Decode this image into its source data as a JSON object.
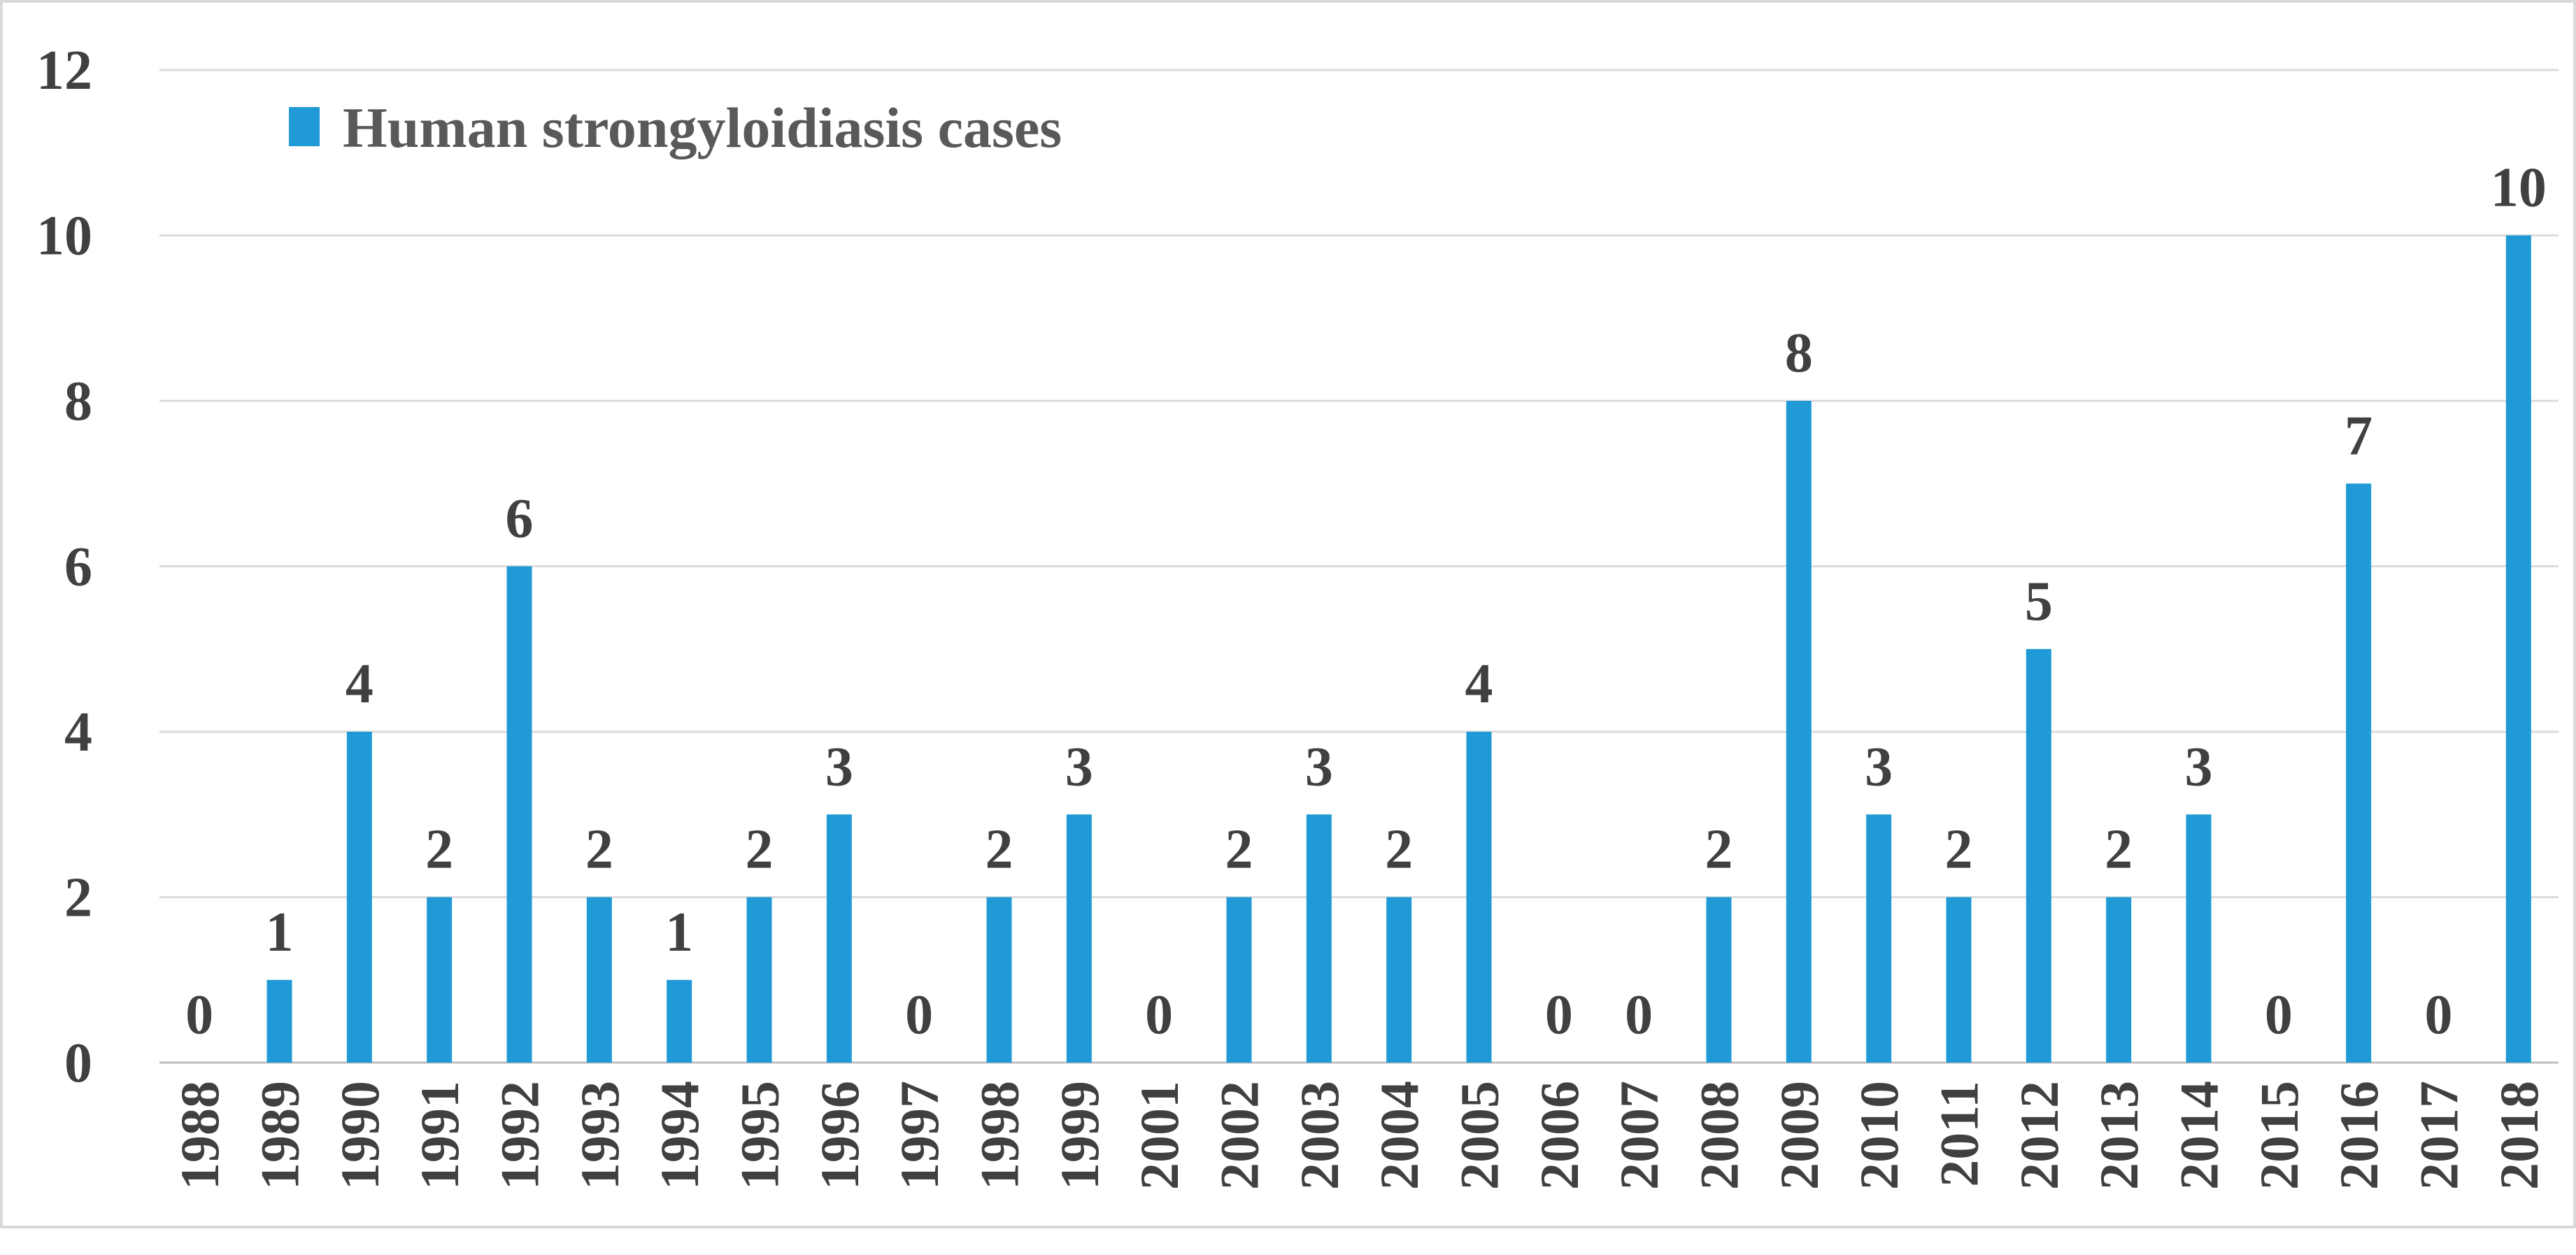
{
  "chart_data": {
    "type": "bar",
    "title": "",
    "xlabel": "",
    "ylabel": "",
    "ylim": [
      0,
      12
    ],
    "yticks": [
      "0",
      "2",
      "4",
      "6",
      "8",
      "10",
      "12"
    ],
    "grid": true,
    "legend_position": "top-left",
    "bar_color": "#1f9ad6",
    "categories": [
      "1988",
      "1989",
      "1990",
      "1991",
      "1992",
      "1993",
      "1994",
      "1995",
      "1996",
      "1997",
      "1998",
      "1999",
      "2001",
      "2002",
      "2003",
      "2004",
      "2005",
      "2006",
      "2007",
      "2008",
      "2009",
      "2010",
      "2011",
      "2012",
      "2013",
      "2014",
      "2015",
      "2016",
      "2017",
      "2018"
    ],
    "series": [
      {
        "name": "Human strongyloidiasis cases",
        "values": [
          0,
          1,
          4,
          2,
          6,
          2,
          1,
          2,
          3,
          0,
          2,
          3,
          0,
          2,
          3,
          2,
          4,
          0,
          0,
          2,
          8,
          3,
          2,
          5,
          2,
          3,
          0,
          7,
          0,
          10
        ]
      }
    ]
  }
}
